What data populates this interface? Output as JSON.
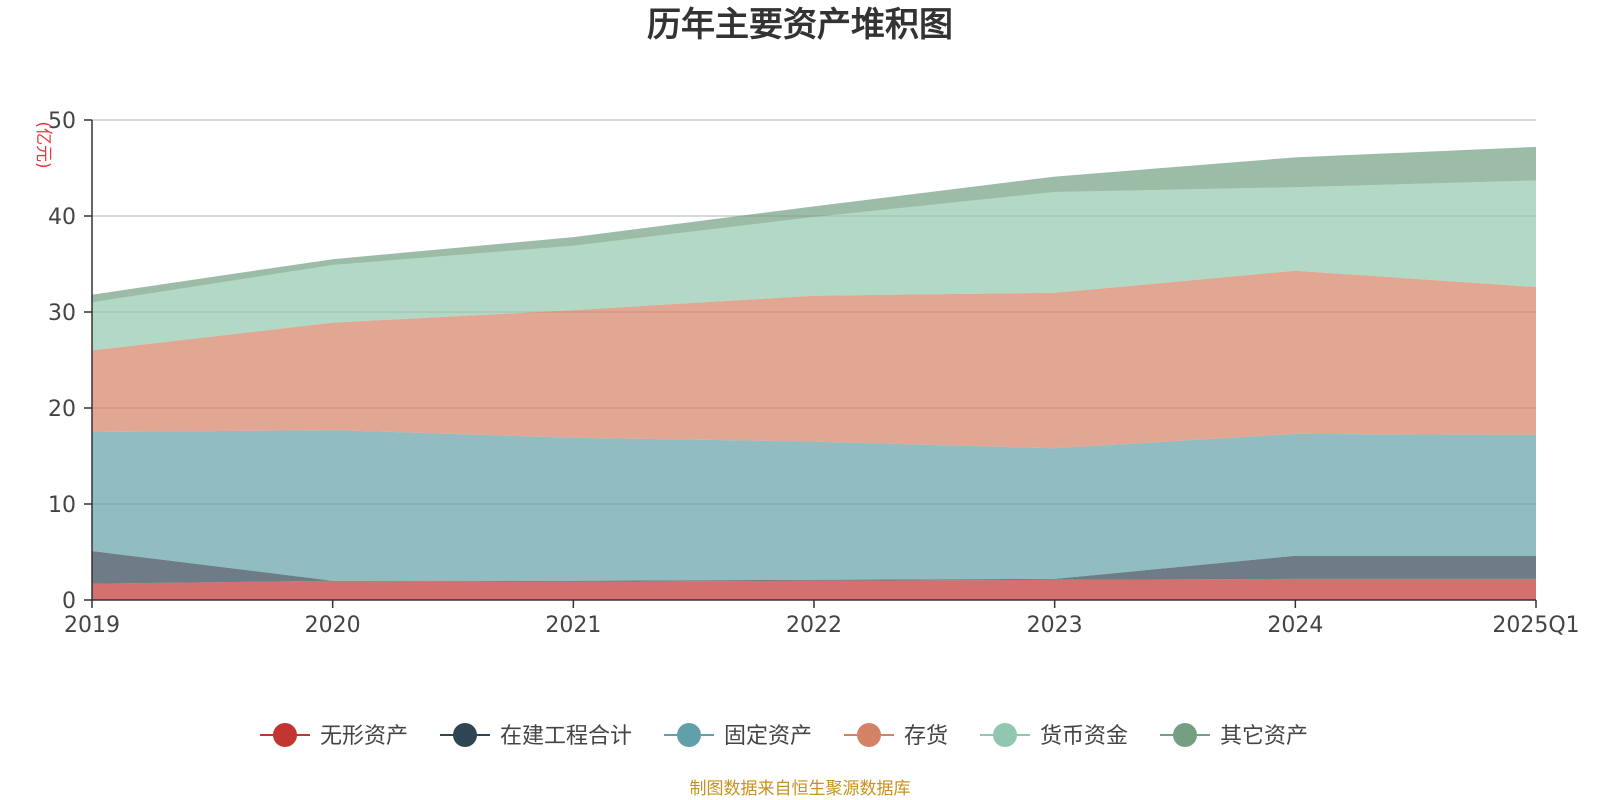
{
  "chart_data": {
    "type": "area",
    "stacked": true,
    "title": "历年主要资产堆积图",
    "ylabel": "(亿元)",
    "xlabel": "",
    "ylim": [
      0,
      50
    ],
    "yticks": [
      0,
      10,
      20,
      30,
      40,
      50
    ],
    "grid": true,
    "legend_position": "bottom",
    "categories": [
      "2019",
      "2020",
      "2021",
      "2022",
      "2023",
      "2024",
      "2025Q1"
    ],
    "series": [
      {
        "name": "无形资产",
        "color": "#c23531",
        "values": [
          1.7,
          2.0,
          1.9,
          2.0,
          2.1,
          2.2,
          2.2
        ]
      },
      {
        "name": "在建工程合计",
        "color": "#2f4554",
        "values": [
          3.4,
          0.0,
          0.1,
          0.1,
          0.1,
          2.4,
          2.4
        ]
      },
      {
        "name": "固定资产",
        "color": "#61a0a8",
        "values": [
          12.4,
          15.7,
          14.9,
          14.4,
          13.6,
          12.7,
          12.6
        ]
      },
      {
        "name": "存货",
        "color": "#d48265",
        "values": [
          8.5,
          11.2,
          13.3,
          15.2,
          16.2,
          17.0,
          15.4
        ]
      },
      {
        "name": "货币资金",
        "color": "#91c7ae",
        "values": [
          5.0,
          6.0,
          6.7,
          8.2,
          10.5,
          8.7,
          11.1
        ]
      },
      {
        "name": "其它资产",
        "color": "#749f83",
        "values": [
          0.8,
          0.6,
          0.9,
          1.1,
          1.6,
          3.1,
          3.5
        ]
      }
    ],
    "source_note": "制图数据来自恒生聚源数据库"
  }
}
